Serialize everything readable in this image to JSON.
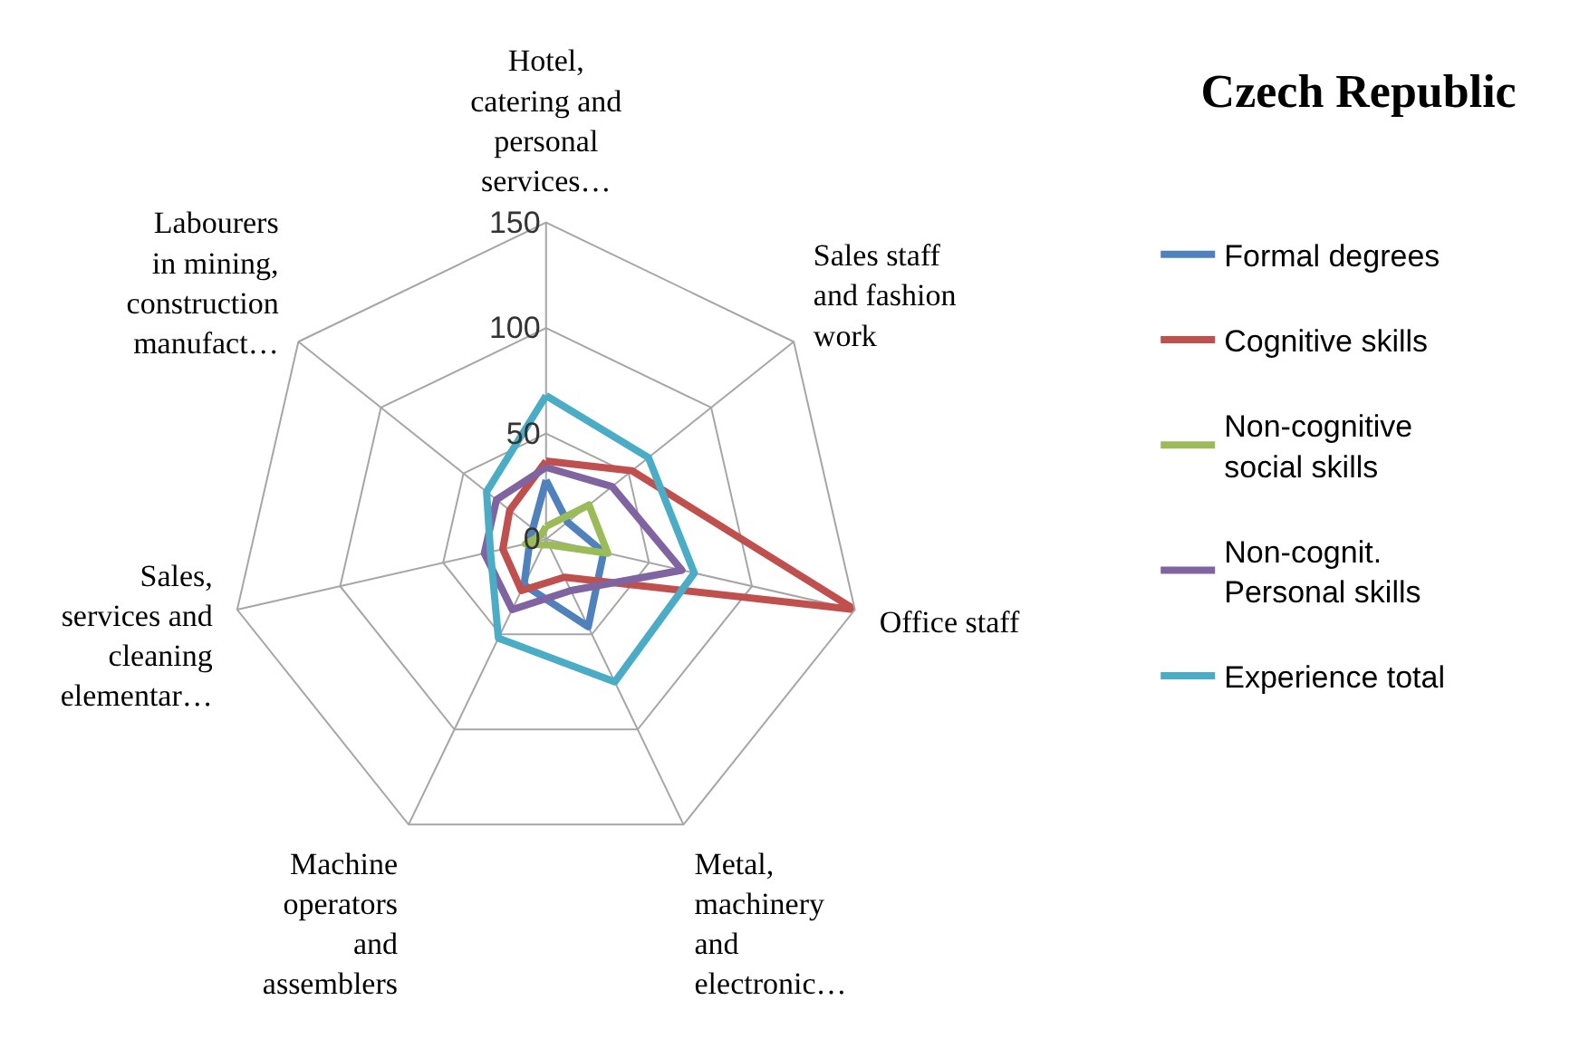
{
  "chart_data": {
    "type": "radar",
    "title": "Czech Republic",
    "categories": [
      "Hotel,\ncatering and\npersonal\nservices…",
      "Sales staff\nand fashion\nwork",
      "Office staff",
      "Metal,\nmachinery\nand\nelectronic…",
      "Machine\noperators\nand\nassemblers",
      "Sales,\nservices and\ncleaning\nelementar…",
      "Labourers\nin mining,\nconstruction\nmanufact…"
    ],
    "series": [
      {
        "name": "Formal degrees",
        "color": "#4f81bd",
        "values": [
          28,
          13,
          28,
          46,
          24,
          8,
          8
        ]
      },
      {
        "name": "Cognitive skills",
        "color": "#c0504d",
        "values": [
          37,
          52,
          150,
          20,
          27,
          21,
          22
        ]
      },
      {
        "name": "Non-cognitive\nsocial skills",
        "color": "#9bbb59",
        "values": [
          6,
          26,
          30,
          3,
          3,
          10,
          3
        ]
      },
      {
        "name": "Non-cognit.\nPersonal skills",
        "color": "#8064a2",
        "values": [
          34,
          40,
          66,
          27,
          37,
          30,
          30
        ]
      },
      {
        "name": "Experience total",
        "color": "#4bacc6",
        "values": [
          68,
          62,
          72,
          75,
          52,
          27,
          36
        ]
      }
    ],
    "ylim": [
      0,
      150
    ],
    "yticks": [
      0,
      50,
      100,
      150
    ],
    "grid": true,
    "legend": "right",
    "marker": "none",
    "line_style": "solid"
  }
}
